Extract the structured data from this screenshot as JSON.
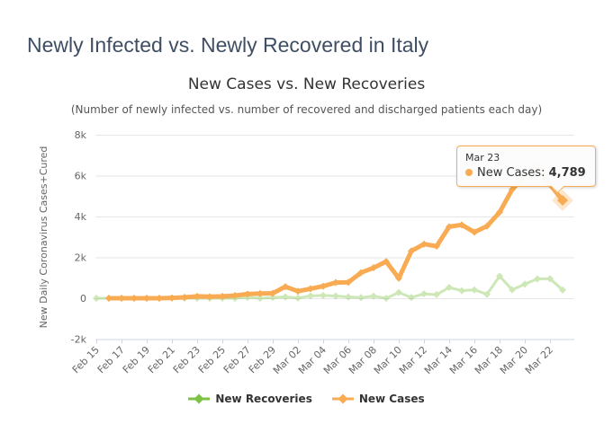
{
  "page": {
    "title": "Newly Infected vs. Newly Recovered in Italy"
  },
  "tooltip": {
    "date": "Mar 23",
    "series_label": "New Cases:",
    "value": "4,789"
  },
  "legend": {
    "items": [
      {
        "label": "New Recoveries"
      },
      {
        "label": "New Cases"
      }
    ]
  },
  "colors": {
    "cases": "#f8ab52",
    "recoveries": "#7dc242",
    "grid": "#e6e6e6",
    "axis_line": "#ccd6eb",
    "tick_text": "#666666",
    "chart_title_text": "#333333",
    "page_title_text": "#3f4e63"
  },
  "chart_data": {
    "type": "line",
    "title": "New Cases vs. New Recoveries",
    "subtitle": "(Number of newly infected vs. number of recovered and discharged patients each day)",
    "ylabel": "New Daily Coronavirus Cases+Cured",
    "ylim": [
      -2000,
      8000
    ],
    "yticks": [
      {
        "value": 8000,
        "label": "8k"
      },
      {
        "value": 6000,
        "label": "6k"
      },
      {
        "value": 4000,
        "label": "4k"
      },
      {
        "value": 2000,
        "label": "2k"
      },
      {
        "value": 0,
        "label": "0"
      },
      {
        "value": -2000,
        "label": "-2k"
      }
    ],
    "x_tick_step": 2,
    "grid": true,
    "legend_position": "bottom",
    "categories": [
      "Feb 15",
      "Feb 16",
      "Feb 17",
      "Feb 18",
      "Feb 19",
      "Feb 20",
      "Feb 21",
      "Feb 22",
      "Feb 23",
      "Feb 24",
      "Feb 25",
      "Feb 26",
      "Feb 27",
      "Feb 28",
      "Feb 29",
      "Mar 01",
      "Mar 02",
      "Mar 03",
      "Mar 04",
      "Mar 05",
      "Mar 06",
      "Mar 07",
      "Mar 08",
      "Mar 09",
      "Mar 10",
      "Mar 11",
      "Mar 12",
      "Mar 13",
      "Mar 14",
      "Mar 15",
      "Mar 16",
      "Mar 17",
      "Mar 18",
      "Mar 19",
      "Mar 20",
      "Mar 21",
      "Mar 22",
      "Mar 23"
    ],
    "series": [
      {
        "name": "New Recoveries",
        "color": "#7dc242",
        "dimmed": true,
        "values": [
          0,
          0,
          0,
          0,
          0,
          0,
          0,
          1,
          1,
          0,
          1,
          0,
          42,
          1,
          37,
          66,
          11,
          116,
          138,
          109,
          66,
          33,
          102,
          0,
          280,
          41,
          213,
          181,
          527,
          369,
          414,
          192,
          1084,
          415,
          689,
          943,
          952,
          408
        ]
      },
      {
        "name": "New Cases",
        "color": "#f8ab52",
        "dimmed": false,
        "values": [
          null,
          0,
          0,
          0,
          0,
          0,
          17,
          42,
          93,
          74,
          93,
          131,
          202,
          233,
          240,
          566,
          342,
          466,
          587,
          769,
          778,
          1247,
          1492,
          1797,
          977,
          2313,
          2651,
          2547,
          3497,
          3590,
          3233,
          3526,
          4207,
          5322,
          5986,
          6557,
          5560,
          4789
        ]
      }
    ],
    "highlight": {
      "series": "New Cases",
      "category": "Mar 23",
      "value": 4789
    }
  }
}
